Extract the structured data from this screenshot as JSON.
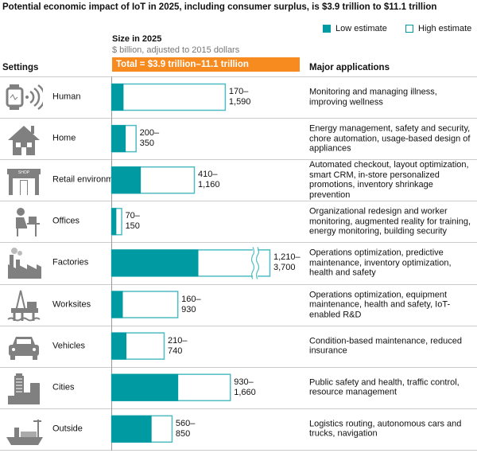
{
  "chart_data": {
    "type": "bar",
    "title": "Potential economic impact of IoT in 2025, including consumer surplus, is $3.9 trillion to $11.1 trillion",
    "subtitle_header": "Size in 2025",
    "unit": "$ billion, adjusted to 2015 dollars",
    "total_label": "Total = $3.9 trillion–11.1 trillion",
    "legend": [
      {
        "name": "Low estimate",
        "color": "#009aa3",
        "style": "filled"
      },
      {
        "name": "High estimate",
        "color": "#009aa3",
        "style": "outline"
      }
    ],
    "legend_placement": "top-right",
    "columns": {
      "settings": "Settings",
      "applications": "Major applications"
    },
    "categories": [
      "Human",
      "Home",
      "Retail environments",
      "Offices",
      "Factories",
      "Worksites",
      "Vehicles",
      "Cities",
      "Outside"
    ],
    "series": [
      {
        "name": "Low estimate",
        "values": [
          170,
          200,
          410,
          70,
          1210,
          160,
          210,
          930,
          560
        ]
      },
      {
        "name": "High estimate",
        "values": [
          1590,
          350,
          1160,
          150,
          3700,
          930,
          740,
          1660,
          850
        ]
      }
    ],
    "value_labels": [
      [
        "170–",
        "1,590"
      ],
      [
        "200–",
        "350"
      ],
      [
        "410–",
        "1,160"
      ],
      [
        "70–",
        "150"
      ],
      [
        "1,210–",
        "3,700"
      ],
      [
        "160–",
        "930"
      ],
      [
        "210–",
        "740"
      ],
      [
        "930–",
        "1,660"
      ],
      [
        "560–",
        "850"
      ]
    ],
    "axis_break": {
      "category": "Factories"
    },
    "applications": [
      "Monitoring and managing illness, improving wellness",
      "Energy management, safety and security, chore automation, usage-based design of appliances",
      "Automated checkout, layout optimization, smart CRM, in-store personalized promotions, inventory shrinkage prevention",
      "Organizational redesign and worker monitoring, augmented reality for training, energy monitoring, building security",
      "Operations optimization, predictive maintenance, inventory optimization, health and safety",
      "Operations optimization, equipment maintenance, health and safety, IoT-enabled R&D",
      "Condition-based maintenance, reduced insurance",
      "Public safety and health, traffic control, resource management",
      "Logistics routing, autonomous cars and trucks, navigation"
    ],
    "icons": [
      "smartwatch-icon",
      "house-icon",
      "shop-icon",
      "office-worker-icon",
      "factory-icon",
      "oil-rig-icon",
      "car-icon",
      "city-buildings-icon",
      "cargo-ship-icon"
    ],
    "colors": {
      "teal": "#009aa3",
      "orange": "#f78b1f",
      "icon_gray": "#808080"
    }
  }
}
